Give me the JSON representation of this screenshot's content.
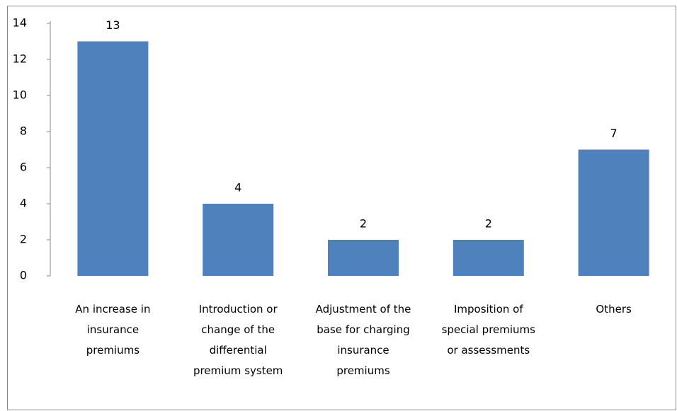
{
  "chart_data": {
    "type": "bar",
    "categories": [
      "An increase in insurance premiums",
      "Introduction or change of the differential premium system",
      "Adjustment of the base for charging insurance premiums",
      "Imposition of special premiums or assessments",
      "Others"
    ],
    "values": [
      13,
      4,
      2,
      2,
      7
    ],
    "color": "#4f81bd",
    "ylim": [
      0,
      14
    ],
    "yticks": [
      0,
      2,
      4,
      6,
      8,
      10,
      12,
      14
    ],
    "grid": false
  }
}
